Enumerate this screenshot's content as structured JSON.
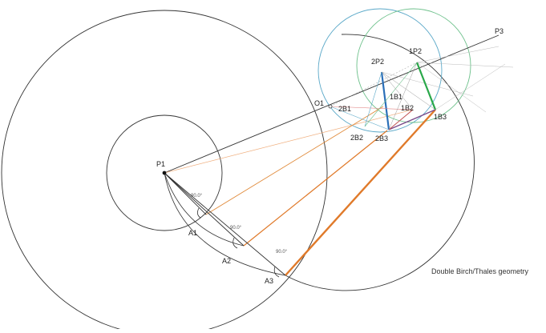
{
  "labels": {
    "p1": "P1",
    "p3": "P3",
    "o1": "O1",
    "a1": "A1",
    "a2": "A2",
    "a3": "A3",
    "p2_1": "1P2",
    "p2_2": "2P2",
    "b1_1": "1B1",
    "b1_2": "2B1",
    "b2_1": "1B2",
    "b2_2": "2B2",
    "b3_1": "1B3",
    "b3_2": "2B3"
  },
  "angles": {
    "a1": "90.0°",
    "a2": "90.0°",
    "a3": "90.0°"
  },
  "caption": "Double Birch/Thales geometry",
  "colors": {
    "line_dark": "#333333",
    "line_light": "#b0b0b0",
    "orange": "#e07a2a",
    "orange_light": "#f0b080",
    "blue": "#2a6fb8",
    "green": "#2aa84a",
    "circle_teal": "#5aa8c8",
    "circle_green": "#6cc08a",
    "purple": "#7a4a8a",
    "red_light": "#e08080"
  }
}
